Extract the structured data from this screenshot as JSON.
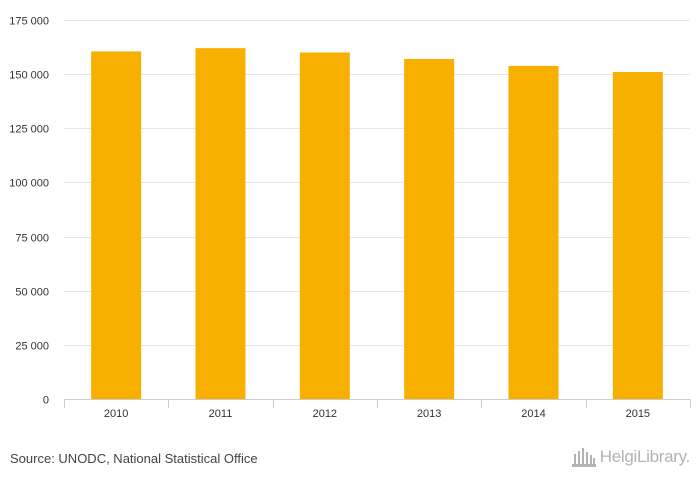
{
  "chart_data": {
    "type": "bar",
    "categories": [
      "2010",
      "2011",
      "2012",
      "2013",
      "2014",
      "2015"
    ],
    "values": [
      160500,
      162000,
      160000,
      157000,
      153800,
      151000
    ],
    "title": "",
    "xlabel": "",
    "ylabel": "",
    "ylim": [
      0,
      175000
    ],
    "yticks": [
      0,
      25000,
      50000,
      75000,
      100000,
      125000,
      150000,
      175000
    ],
    "ytick_labels": [
      "0",
      "25 000",
      "50 000",
      "75 000",
      "100 000",
      "125 000",
      "150 000",
      "175 000"
    ],
    "grid": true,
    "legend": "none",
    "bar_color": "#f7b000"
  },
  "footer": {
    "source": "Source: UNODC, National Statistical Office",
    "brand": "HelgiLibrary."
  },
  "colors": {
    "bar": "#f7b000",
    "grid": "#e6e6e6",
    "axis": "#cccccc",
    "brand": "#b3b3b3"
  }
}
